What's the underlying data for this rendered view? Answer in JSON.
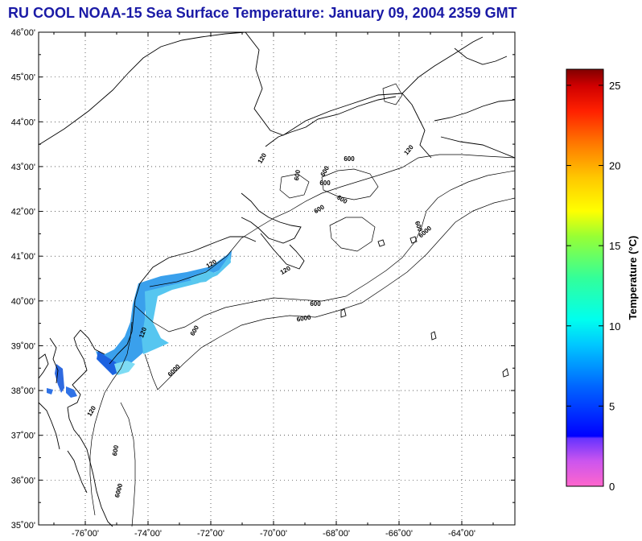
{
  "title": "RU COOL  NOAA-15  Sea Surface Temperature:  January 09, 2004 2359 GMT",
  "map": {
    "lat_labels": [
      "46˚00'",
      "45˚00'",
      "44˚00'",
      "43˚00'",
      "42˚00'",
      "41˚00'",
      "40˚00'",
      "39˚00'",
      "38˚00'",
      "37˚00'",
      "36˚00'",
      "35˚00'"
    ],
    "lon_labels": [
      "-76˚00'",
      "-74˚00'",
      "-72˚00'",
      "-70˚00'",
      "-68˚00'",
      "-66˚00'",
      "-64˚00'"
    ],
    "contour_labels": [
      "600",
      "600",
      "600",
      "600",
      "600",
      "600",
      "600",
      "600",
      "600",
      "600",
      "120",
      "120",
      "120",
      "120",
      "120",
      "120",
      "6000",
      "6000",
      "6000",
      "6000"
    ],
    "colors": {
      "land_outline": "#000000",
      "title": "#1a1aa6"
    }
  },
  "colorbar": {
    "label": "Temperature (°C)",
    "ticks": [
      "25",
      "20",
      "15",
      "10",
      "5",
      "0"
    ]
  }
}
